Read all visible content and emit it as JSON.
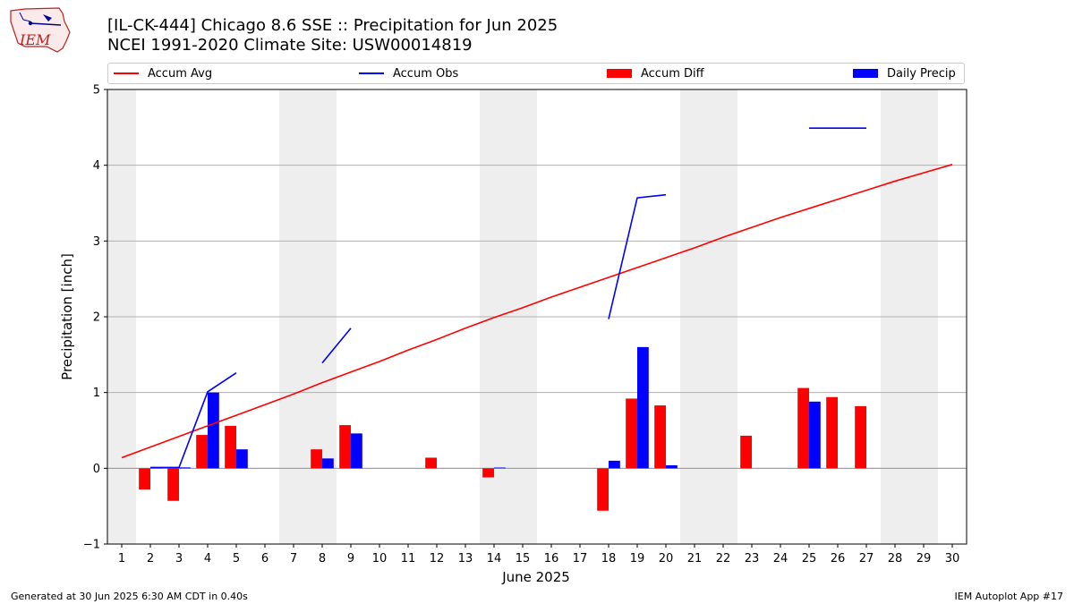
{
  "header": {
    "title_line1": "[IL-CK-444] Chicago 8.6 SSE :: Precipitation for Jun 2025",
    "title_line2": "NCEI 1991-2020 Climate Site: USW00014819",
    "logo_text": "IEM"
  },
  "legend": {
    "items": [
      {
        "label": "Accum Avg",
        "kind": "line",
        "color": "#ff0000"
      },
      {
        "label": "Accum Obs",
        "kind": "line",
        "color": "#0000ff"
      },
      {
        "label": "Accum Diff",
        "kind": "patch",
        "color": "#ff0000"
      },
      {
        "label": "Daily Precip",
        "kind": "patch",
        "color": "#0000ff"
      }
    ]
  },
  "footer": {
    "left": "Generated at 30 Jun 2025 6:30 AM CDT in 0.40s",
    "right": "IEM Autoplot App #17"
  },
  "chart_data": {
    "type": "bar",
    "xlabel": "June 2025",
    "ylabel": "Precipitation [inch]",
    "ylim": [
      -1,
      5
    ],
    "xlim": [
      0.5,
      30.5
    ],
    "yticks": [
      -1,
      0,
      1,
      2,
      3,
      4,
      5
    ],
    "ytick_labels": [
      "−1",
      "0",
      "1",
      "2",
      "3",
      "4",
      "5"
    ],
    "x": [
      1,
      2,
      3,
      4,
      5,
      6,
      7,
      8,
      9,
      10,
      11,
      12,
      13,
      14,
      15,
      16,
      17,
      18,
      19,
      20,
      21,
      22,
      23,
      24,
      25,
      26,
      27,
      28,
      29,
      30
    ],
    "grid": "horizontal",
    "weekend_shading": [
      [
        0.5,
        1.5
      ],
      [
        6.5,
        8.5
      ],
      [
        13.5,
        15.5
      ],
      [
        20.5,
        22.5
      ],
      [
        27.5,
        29.5
      ]
    ],
    "series": [
      {
        "name": "Accum Avg",
        "kind": "line",
        "color": "#ff0000",
        "values": [
          0.14,
          0.28,
          0.42,
          0.56,
          0.7,
          0.84,
          0.98,
          1.13,
          1.27,
          1.41,
          1.56,
          1.7,
          1.85,
          1.99,
          2.12,
          2.26,
          2.39,
          2.52,
          2.65,
          2.78,
          2.91,
          3.05,
          3.18,
          3.31,
          3.43,
          3.55,
          3.67,
          3.79,
          3.9,
          4.01
        ]
      },
      {
        "name": "Accum Obs",
        "kind": "line",
        "color": "#0000ff",
        "values": [
          null,
          0.01,
          0.01,
          1.01,
          1.26,
          null,
          null,
          1.39,
          1.85,
          null,
          null,
          null,
          null,
          null,
          null,
          null,
          null,
          1.97,
          3.57,
          3.61,
          null,
          null,
          null,
          null,
          4.49,
          4.49,
          4.49,
          null,
          null,
          null
        ]
      },
      {
        "name": "Accum Diff",
        "kind": "bar",
        "color": "#ff0000",
        "values": [
          null,
          -0.28,
          -0.43,
          0.44,
          0.56,
          null,
          null,
          0.25,
          0.57,
          null,
          null,
          0.14,
          null,
          -0.12,
          null,
          null,
          null,
          -0.56,
          0.92,
          0.83,
          null,
          null,
          0.43,
          null,
          1.06,
          0.94,
          0.82,
          null,
          null,
          null
        ]
      },
      {
        "name": "Daily Precip",
        "kind": "bar",
        "color": "#0000ff",
        "values": [
          null,
          0,
          0,
          1.0,
          0.25,
          null,
          null,
          0.13,
          0.46,
          null,
          null,
          null,
          null,
          0.01,
          null,
          null,
          null,
          0.1,
          1.6,
          0.04,
          null,
          null,
          null,
          null,
          0.88,
          null,
          null,
          null,
          null,
          null
        ]
      }
    ]
  }
}
